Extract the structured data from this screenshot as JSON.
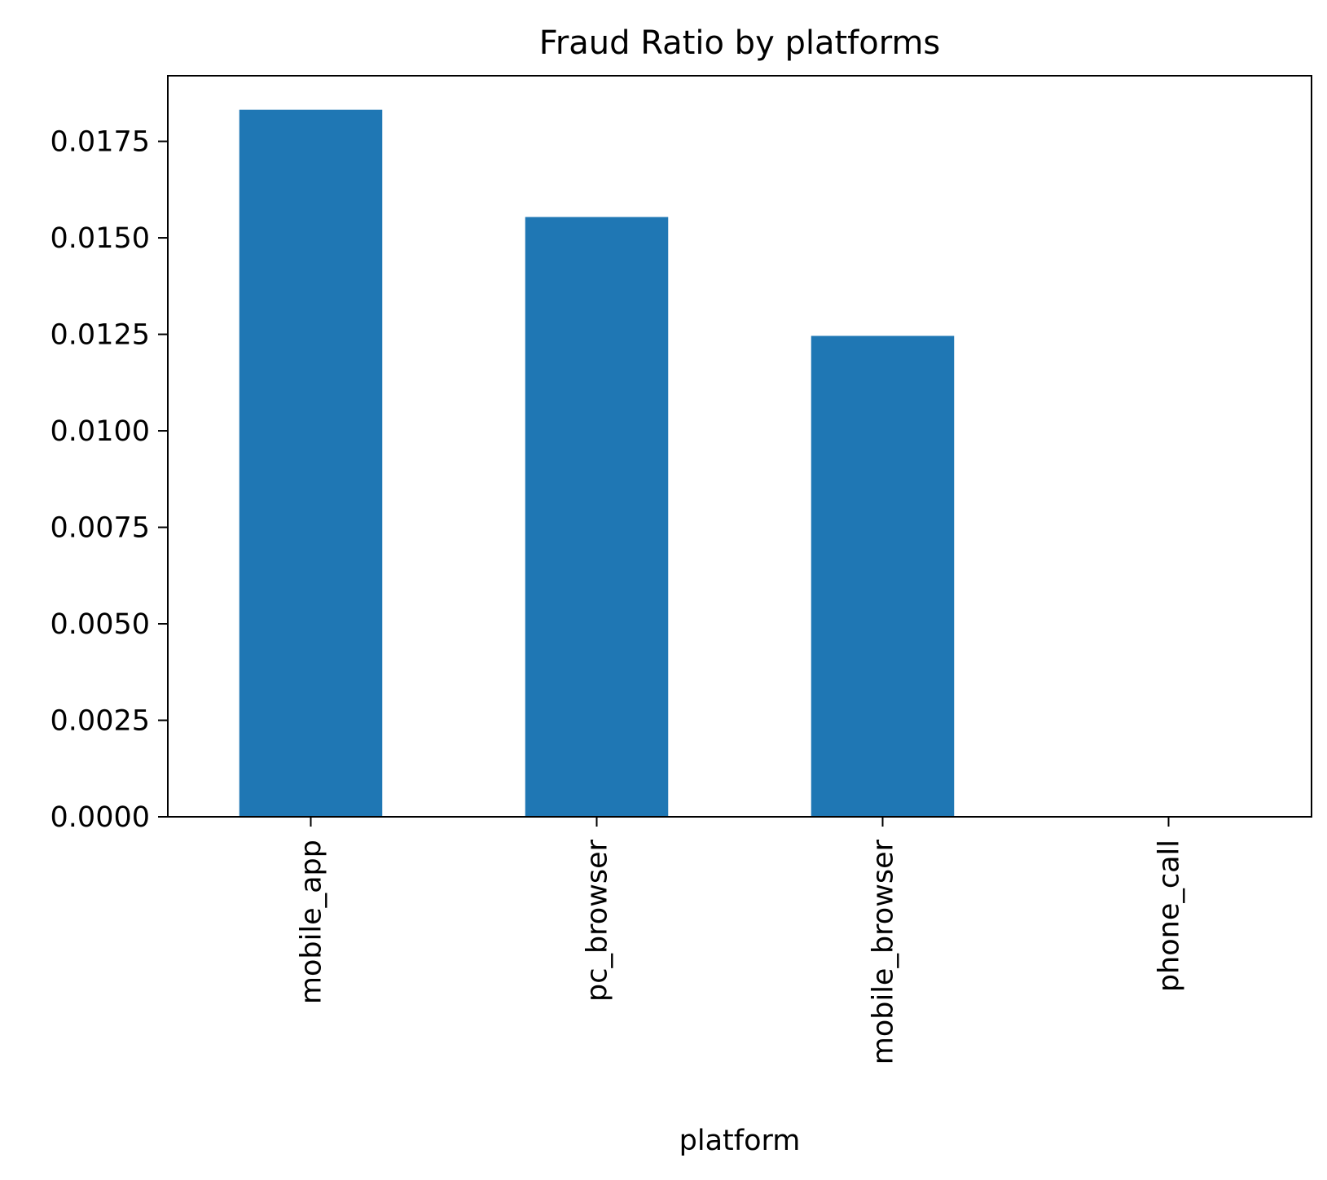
{
  "chart_data": {
    "type": "bar",
    "title": "Fraud Ratio by platforms",
    "xlabel": "platform",
    "ylabel": "",
    "categories": [
      "mobile_app",
      "pc_browser",
      "mobile_browser",
      "phone_call"
    ],
    "values": [
      0.01832,
      0.01554,
      0.01246,
      0.0
    ],
    "ylim": [
      0,
      0.0192
    ],
    "yticks": [
      0.0,
      0.0025,
      0.005,
      0.0075,
      0.01,
      0.0125,
      0.015,
      0.0175
    ],
    "ytick_labels": [
      "0.0000",
      "0.0025",
      "0.0050",
      "0.0075",
      "0.0100",
      "0.0125",
      "0.0150",
      "0.0175"
    ],
    "bar_color": "#1f77b4",
    "grid": false,
    "legend": "none"
  }
}
